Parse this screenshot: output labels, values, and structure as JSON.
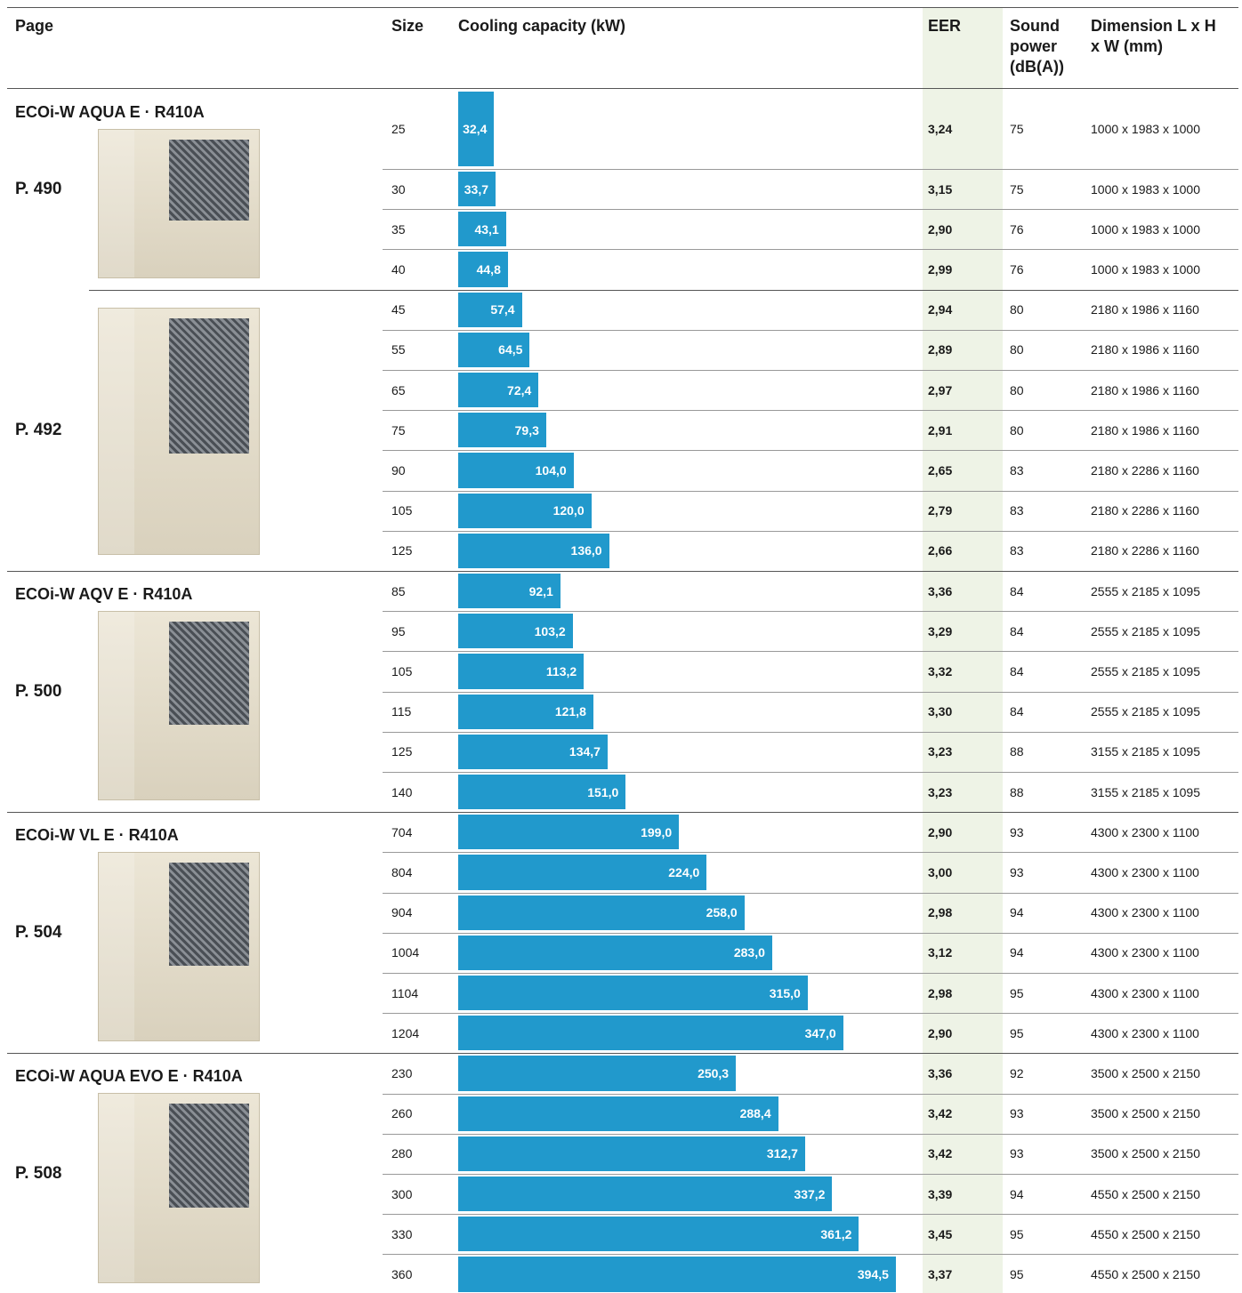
{
  "header": {
    "page": "Page",
    "size": "Size",
    "capacity": "Cooling capacity (kW)",
    "eer": "EER",
    "sound": "Sound power (dB(A))",
    "dimension": "Dimension L x H x W (mm)"
  },
  "groups": [
    {
      "title": "ECOi-W AQUA E · R410A",
      "page": "P. 490",
      "rows": [
        {
          "size": "25",
          "capacity": 32.4,
          "capacity_label": "32,4",
          "eer": "3,24",
          "sound": "75",
          "dimension": "1000 x 1983 x 1000"
        },
        {
          "size": "30",
          "capacity": 33.7,
          "capacity_label": "33,7",
          "eer": "3,15",
          "sound": "75",
          "dimension": "1000 x 1983 x 1000"
        },
        {
          "size": "35",
          "capacity": 43.1,
          "capacity_label": "43,1",
          "eer": "2,90",
          "sound": "76",
          "dimension": "1000 x 1983 x 1000"
        },
        {
          "size": "40",
          "capacity": 44.8,
          "capacity_label": "44,8",
          "eer": "2,99",
          "sound": "76",
          "dimension": "1000 x 1983 x 1000"
        }
      ]
    },
    {
      "page": "P. 492",
      "rows": [
        {
          "size": "45",
          "capacity": 57.4,
          "capacity_label": "57,4",
          "eer": "2,94",
          "sound": "80",
          "dimension": "2180 x 1986 x 1160"
        },
        {
          "size": "55",
          "capacity": 64.5,
          "capacity_label": "64,5",
          "eer": "2,89",
          "sound": "80",
          "dimension": "2180 x 1986 x 1160"
        },
        {
          "size": "65",
          "capacity": 72.4,
          "capacity_label": "72,4",
          "eer": "2,97",
          "sound": "80",
          "dimension": "2180 x 1986 x 1160"
        },
        {
          "size": "75",
          "capacity": 79.3,
          "capacity_label": "79,3",
          "eer": "2,91",
          "sound": "80",
          "dimension": "2180 x 1986 x 1160"
        },
        {
          "size": "90",
          "capacity": 104.0,
          "capacity_label": "104,0",
          "eer": "2,65",
          "sound": "83",
          "dimension": "2180 x 2286 x 1160"
        },
        {
          "size": "105",
          "capacity": 120.0,
          "capacity_label": "120,0",
          "eer": "2,79",
          "sound": "83",
          "dimension": "2180 x 2286 x 1160"
        },
        {
          "size": "125",
          "capacity": 136.0,
          "capacity_label": "136,0",
          "eer": "2,66",
          "sound": "83",
          "dimension": "2180 x 2286 x 1160"
        }
      ]
    },
    {
      "title": "ECOi-W AQV E · R410A",
      "page": "P. 500",
      "rows": [
        {
          "size": "85",
          "capacity": 92.1,
          "capacity_label": "92,1",
          "eer": "3,36",
          "sound": "84",
          "dimension": "2555 x 2185 x 1095"
        },
        {
          "size": "95",
          "capacity": 103.2,
          "capacity_label": "103,2",
          "eer": "3,29",
          "sound": "84",
          "dimension": "2555 x 2185 x 1095"
        },
        {
          "size": "105",
          "capacity": 113.2,
          "capacity_label": "113,2",
          "eer": "3,32",
          "sound": "84",
          "dimension": "2555 x 2185 x 1095"
        },
        {
          "size": "115",
          "capacity": 121.8,
          "capacity_label": "121,8",
          "eer": "3,30",
          "sound": "84",
          "dimension": "2555 x 2185 x 1095"
        },
        {
          "size": "125",
          "capacity": 134.7,
          "capacity_label": "134,7",
          "eer": "3,23",
          "sound": "88",
          "dimension": "3155 x 2185 x 1095"
        },
        {
          "size": "140",
          "capacity": 151.0,
          "capacity_label": "151,0",
          "eer": "3,23",
          "sound": "88",
          "dimension": "3155 x 2185 x 1095"
        }
      ]
    },
    {
      "title": "ECOi-W VL E · R410A",
      "page": "P. 504",
      "rows": [
        {
          "size": "704",
          "capacity": 199.0,
          "capacity_label": "199,0",
          "eer": "2,90",
          "sound": "93",
          "dimension": "4300 x 2300 x 1100"
        },
        {
          "size": "804",
          "capacity": 224.0,
          "capacity_label": "224,0",
          "eer": "3,00",
          "sound": "93",
          "dimension": "4300 x 2300 x 1100"
        },
        {
          "size": "904",
          "capacity": 258.0,
          "capacity_label": "258,0",
          "eer": "2,98",
          "sound": "94",
          "dimension": "4300 x 2300 x 1100"
        },
        {
          "size": "1004",
          "capacity": 283.0,
          "capacity_label": "283,0",
          "eer": "3,12",
          "sound": "94",
          "dimension": "4300 x 2300 x 1100"
        },
        {
          "size": "1104",
          "capacity": 315.0,
          "capacity_label": "315,0",
          "eer": "2,98",
          "sound": "95",
          "dimension": "4300 x 2300 x 1100"
        },
        {
          "size": "1204",
          "capacity": 347.0,
          "capacity_label": "347,0",
          "eer": "2,90",
          "sound": "95",
          "dimension": "4300 x 2300 x 1100"
        }
      ]
    },
    {
      "title": "ECOi-W AQUA EVO E · R410A",
      "page": "P. 508",
      "rows": [
        {
          "size": "230",
          "capacity": 250.3,
          "capacity_label": "250,3",
          "eer": "3,36",
          "sound": "92",
          "dimension": "3500 x 2500 x 2150"
        },
        {
          "size": "260",
          "capacity": 288.4,
          "capacity_label": "288,4",
          "eer": "3,42",
          "sound": "93",
          "dimension": "3500 x 2500 x 2150"
        },
        {
          "size": "280",
          "capacity": 312.7,
          "capacity_label": "312,7",
          "eer": "3,42",
          "sound": "93",
          "dimension": "3500 x 2500 x 2150"
        },
        {
          "size": "300",
          "capacity": 337.2,
          "capacity_label": "337,2",
          "eer": "3,39",
          "sound": "94",
          "dimension": "4550 x 2500 x 2150"
        },
        {
          "size": "330",
          "capacity": 361.2,
          "capacity_label": "361,2",
          "eer": "3,45",
          "sound": "95",
          "dimension": "4550 x 2500 x 2150"
        },
        {
          "size": "360",
          "capacity": 394.5,
          "capacity_label": "394,5",
          "eer": "3,37",
          "sound": "95",
          "dimension": "4550 x 2500 x 2150"
        }
      ]
    }
  ]
}
